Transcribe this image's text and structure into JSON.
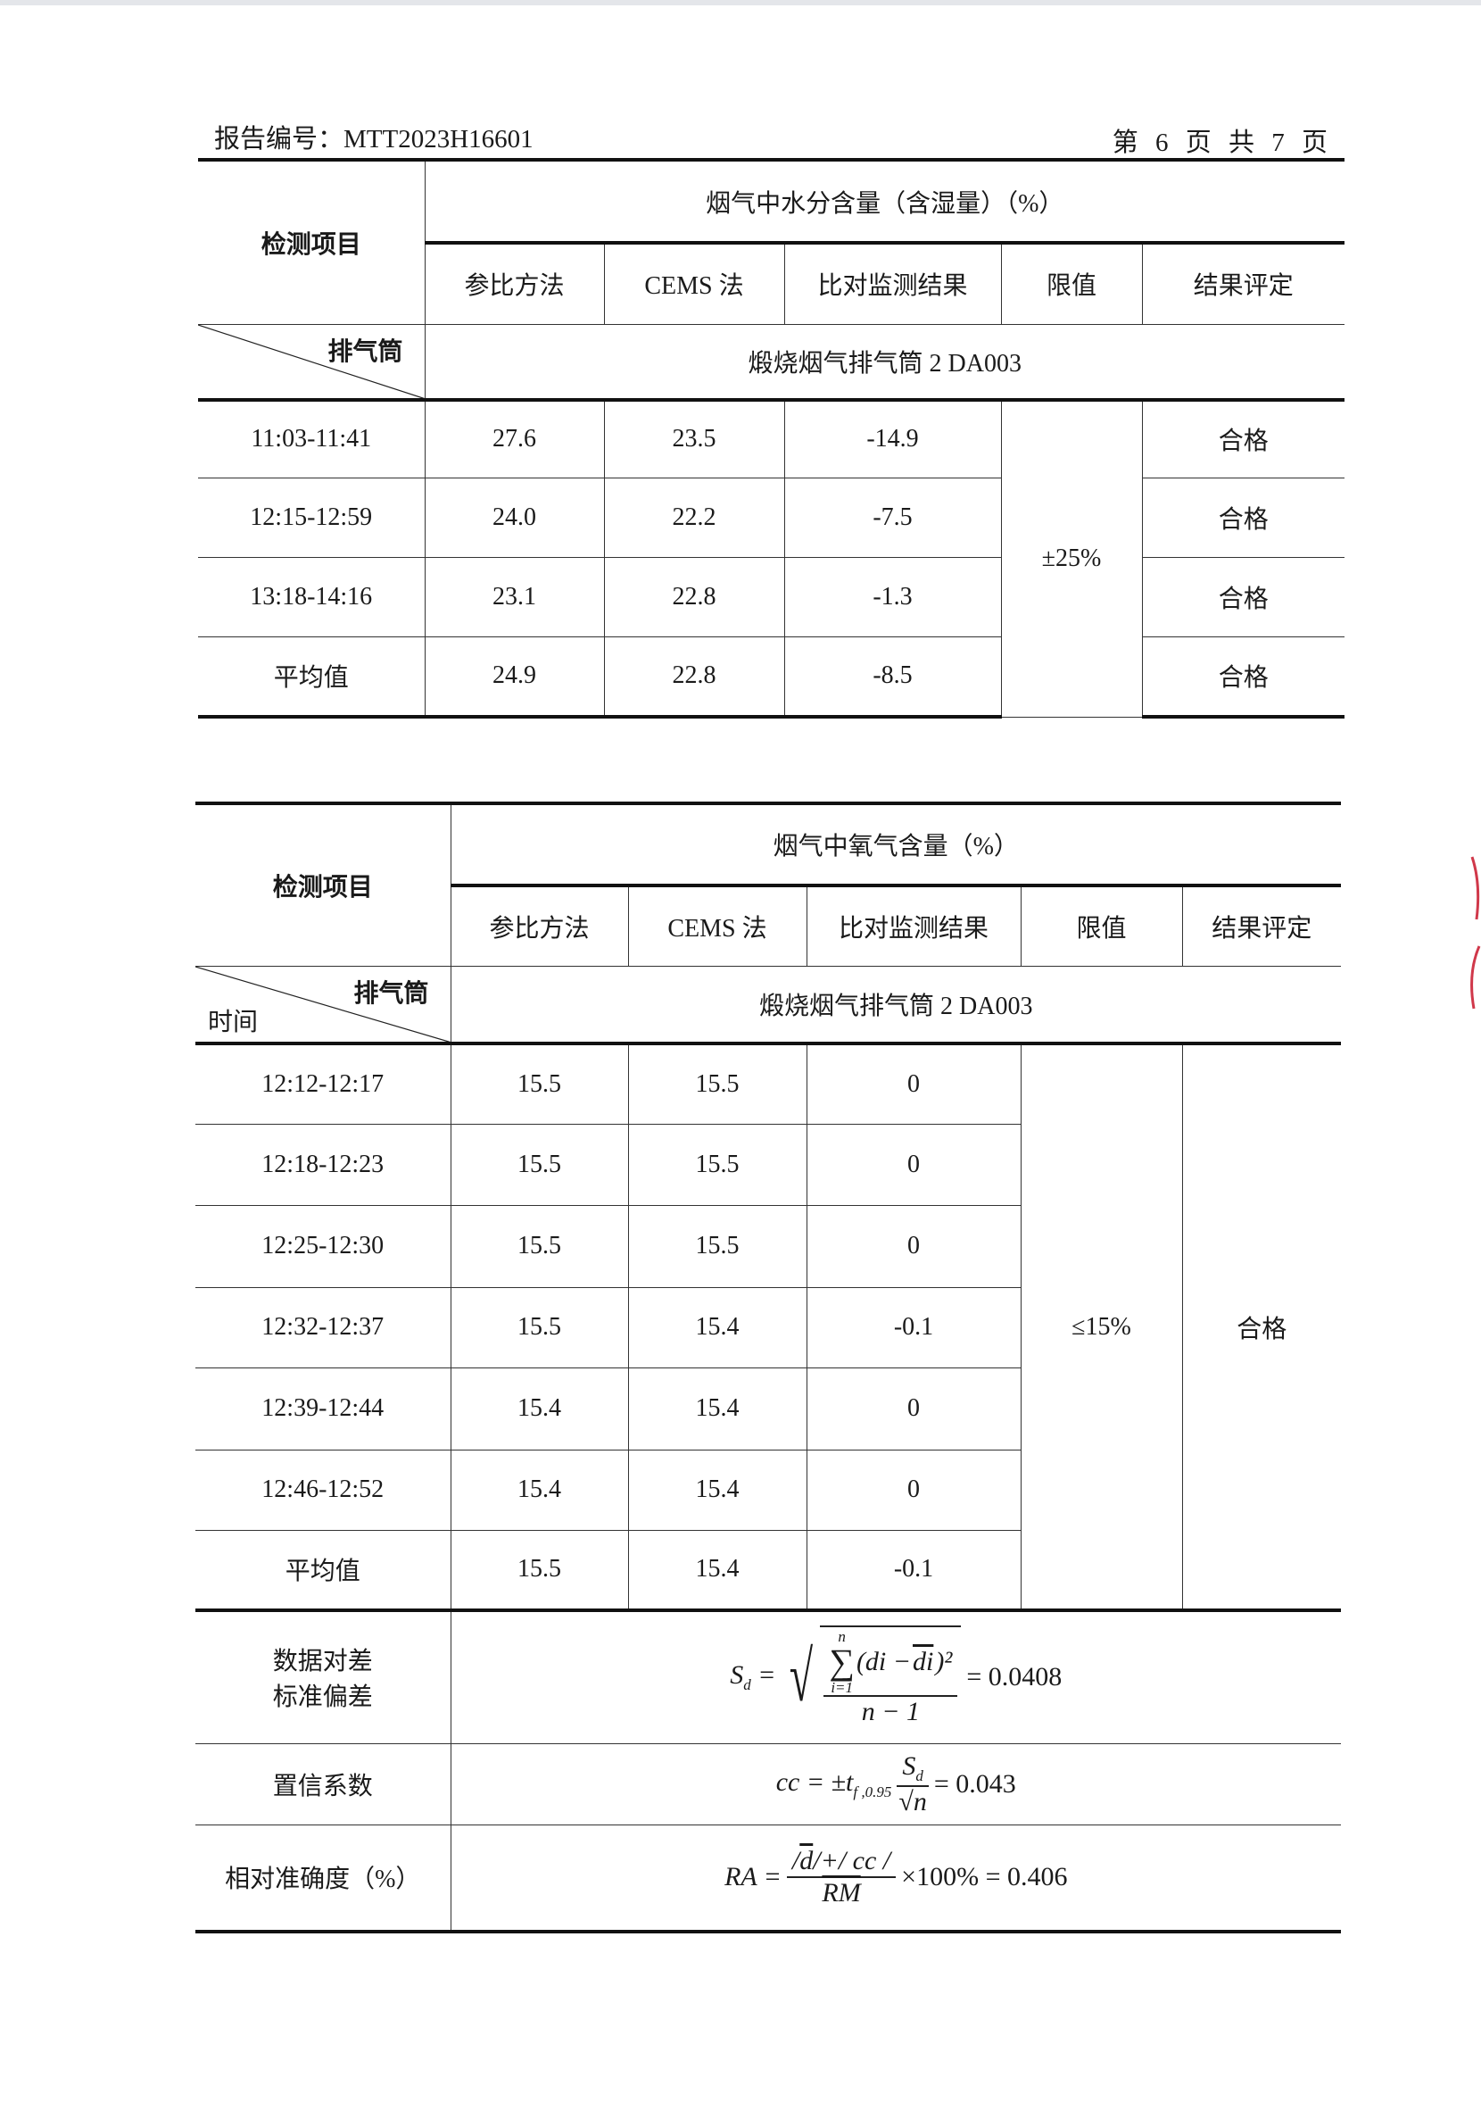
{
  "header": {
    "report_no": "报告编号：MTT2023H16601",
    "page": "第 6 页 共 7 页"
  },
  "table1": {
    "item_label": "检测项目",
    "title": "烟气中水分含量（含湿量）（%）",
    "columns": [
      "参比方法",
      "CEMS 法",
      "比对监测结果",
      "限值",
      "结果评定"
    ],
    "diag_top": "排气筒",
    "stack": "煅烧烟气排气筒 2 DA003",
    "limit": "±25%",
    "rows": [
      {
        "time": "11:03-11:41",
        "ref": "27.6",
        "cems": "23.5",
        "cmp": "-14.9",
        "result": "合格"
      },
      {
        "time": "12:15-12:59",
        "ref": "24.0",
        "cems": "22.2",
        "cmp": "-7.5",
        "result": "合格"
      },
      {
        "time": "13:18-14:16",
        "ref": "23.1",
        "cems": "22.8",
        "cmp": "-1.3",
        "result": "合格"
      },
      {
        "time": "平均值",
        "ref": "24.9",
        "cems": "22.8",
        "cmp": "-8.5",
        "result": "合格"
      }
    ]
  },
  "table2": {
    "item_label": "检测项目",
    "title": "烟气中氧气含量（%）",
    "columns": [
      "参比方法",
      "CEMS 法",
      "比对监测结果",
      "限值",
      "结果评定"
    ],
    "diag_top": "排气筒",
    "diag_bottom": "时间",
    "stack": "煅烧烟气排气筒 2 DA003",
    "limit": "≤15%",
    "result": "合格",
    "rows": [
      {
        "time": "12:12-12:17",
        "ref": "15.5",
        "cems": "15.5",
        "cmp": "0"
      },
      {
        "time": "12:18-12:23",
        "ref": "15.5",
        "cems": "15.5",
        "cmp": "0"
      },
      {
        "time": "12:25-12:30",
        "ref": "15.5",
        "cems": "15.5",
        "cmp": "0"
      },
      {
        "time": "12:32-12:37",
        "ref": "15.5",
        "cems": "15.4",
        "cmp": "-0.1"
      },
      {
        "time": "12:39-12:44",
        "ref": "15.4",
        "cems": "15.4",
        "cmp": "0"
      },
      {
        "time": "12:46-12:52",
        "ref": "15.4",
        "cems": "15.4",
        "cmp": "0"
      },
      {
        "time": "平均值",
        "ref": "15.5",
        "cems": "15.4",
        "cmp": "-0.1"
      }
    ],
    "stats": {
      "sd_label_1": "数据对差",
      "sd_label_2": "标准偏差",
      "sd_lhs": "S",
      "sd_sub": "d",
      "sd_sum": "∑",
      "sd_sum_top": "n",
      "sd_sum_bottom": "i=1",
      "sd_term": "(di − ",
      "sd_term_bar": "di",
      "sd_term_end": ")²",
      "sd_den": "n − 1",
      "sd_value": "= 0.0408",
      "cc_label": "置信系数",
      "cc_lhs": "cc = ±t",
      "cc_sub": "f ,0.95",
      "cc_num": "S",
      "cc_num_sub": "d",
      "cc_den": "n",
      "cc_value": "= 0.043",
      "ra_label": "相对准确度（%）",
      "ra_lhs": "RA =",
      "ra_num_1": "/",
      "ra_num_d": "d",
      "ra_num_2": "/+/ cc /",
      "ra_den": "RM",
      "ra_value": "×100% = 0.406"
    }
  }
}
